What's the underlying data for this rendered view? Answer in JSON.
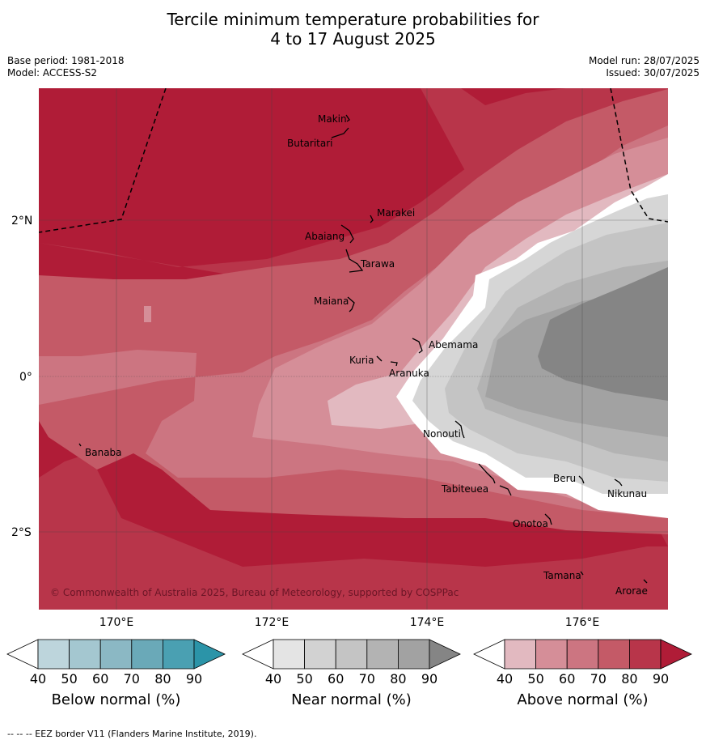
{
  "title_line1": "Tercile minimum temperature probabilities for",
  "title_line2": "4 to 17 August 2025",
  "base_period": "Base period: 1981-2018",
  "model": "Model: ACCESS-S2",
  "model_run": "Model run: 28/07/2025",
  "issued": "Issued: 30/07/2025",
  "copyright": "© Commonwealth of Australia 2025, Bureau of Meteorology, supported by COSPPac",
  "credit": "-- -- -- EEZ border V11 (Flanders Marine Institute, 2019).",
  "lat_labels": [
    "2°N",
    "0°",
    "2°S"
  ],
  "lon_labels": [
    "170°E",
    "172°E",
    "174°E",
    "176°E"
  ],
  "places": [
    "Makin",
    "Butaritari",
    "Marakei",
    "Abaiang",
    "Tarawa",
    "Maiana",
    "Abemama",
    "Kuria",
    "Aranuka",
    "Nonouti",
    "Banaba",
    "Tabiteuea",
    "Beru",
    "Nikunau",
    "Onotoa",
    "Tamana",
    "Arorae"
  ],
  "colorbars": [
    {
      "label": "Below normal (%)",
      "ticks": [
        "40",
        "50",
        "60",
        "70",
        "80",
        "90"
      ],
      "colors": [
        "#ffffff",
        "#bdd5dc",
        "#a4c7d0",
        "#8bb8c4",
        "#6aa9b8",
        "#4aa0b2",
        "#2b94a8"
      ]
    },
    {
      "label": "Near normal (%)",
      "ticks": [
        "40",
        "50",
        "60",
        "70",
        "80",
        "90"
      ],
      "colors": [
        "#ffffff",
        "#e4e4e4",
        "#d2d2d2",
        "#c4c4c4",
        "#b3b3b3",
        "#a2a2a2",
        "#858585"
      ]
    },
    {
      "label": "Above normal (%)",
      "ticks": [
        "40",
        "50",
        "60",
        "70",
        "80",
        "90"
      ],
      "colors": [
        "#ffffff",
        "#e2b9c0",
        "#d58e98",
        "#cc7581",
        "#c45a67",
        "#b8354a",
        "#b01c37"
      ]
    }
  ]
}
